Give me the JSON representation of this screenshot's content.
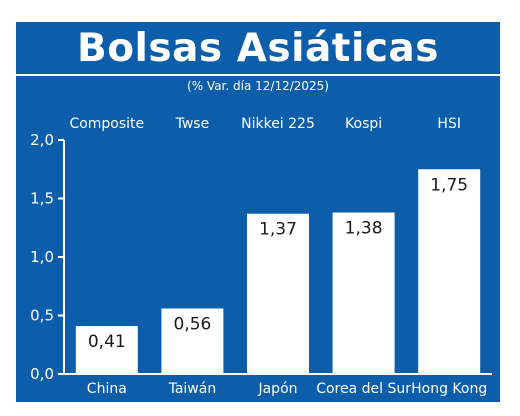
{
  "chart_data": {
    "type": "bar",
    "title": "Bolsas Asiáticas",
    "subtitle": "(% Var. día  12/12/2025)",
    "index_names": [
      "Composite",
      "Twse",
      "Nikkei 225",
      "Kospi",
      "HSI"
    ],
    "categories": [
      "China",
      "Taiwán",
      "Japón",
      "Corea del Sur",
      "Hong Kong"
    ],
    "values": [
      0.41,
      0.56,
      1.37,
      1.38,
      1.75
    ],
    "value_labels": [
      "0,41",
      "0,56",
      "1,37",
      "1,38",
      "1,75"
    ],
    "ylim": [
      0,
      2
    ],
    "yticks": [
      0,
      0.5,
      1,
      1.5,
      2
    ],
    "ytick_labels": [
      "0,0",
      "0,5",
      "1,0",
      "1,5",
      "2,0"
    ],
    "xlabel": "",
    "ylabel": "",
    "grid": false,
    "colors": {
      "background": "#0c5eaa",
      "bar": "#ffffff",
      "text": "#ffffff",
      "value_text": "#1a1a1a"
    }
  }
}
